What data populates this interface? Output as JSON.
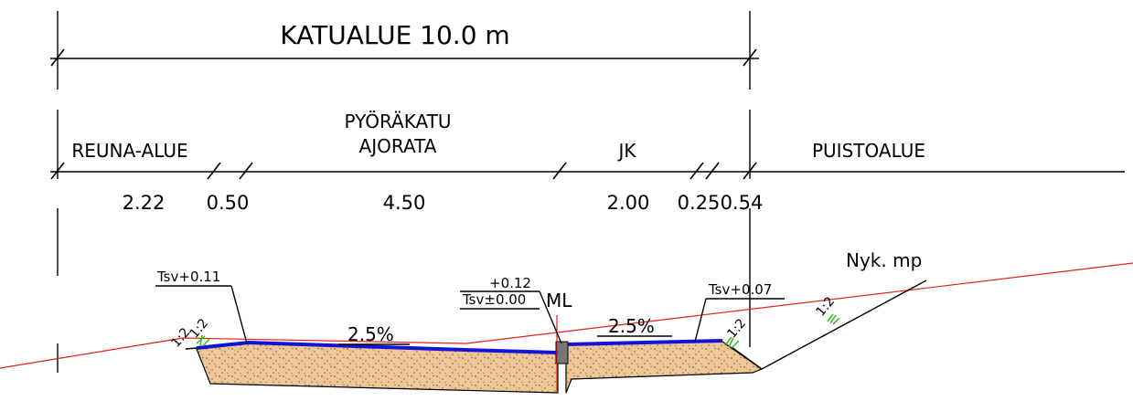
{
  "title": "KATUALUE 10.0 m",
  "zones": {
    "reuna": "REUNA-ALUE",
    "pyorakatu": "PYÖRÄKATU",
    "ajorata": "AJORATA",
    "jk": "JK",
    "puisto": "PUISTOALUE"
  },
  "dimensions": [
    "2.22",
    "0.50",
    "4.50",
    "2.00",
    "0.25",
    "0.54"
  ],
  "annotations": {
    "tsv_left": "Tsv+0.11",
    "plus_center": "+0.12",
    "tsv_center": "Tsv±0.00",
    "ml": "ML",
    "tsv_right": "Tsv+0.07",
    "nyk_mp": "Nyk. mp",
    "slope_left": "2.5%",
    "slope_right": "2.5%",
    "ratio_1": "1:2",
    "ratio_2": "1:2",
    "ratio_3": "1:2",
    "ratio_4": "1:2"
  },
  "colors": {
    "ground_line": "#e0201e",
    "surface": "#1414d8",
    "fill": "#e9c59a",
    "aggregate": "#9a5a2a",
    "grass": "#2dbb1a"
  }
}
